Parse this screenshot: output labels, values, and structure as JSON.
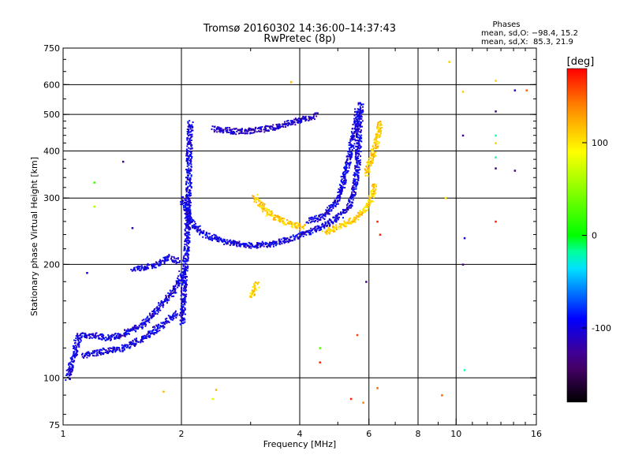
{
  "chart_data": {
    "type": "scatter",
    "title": "Tromsø 20160302 14:36:00–14:37:43",
    "subtitle": "RwPretec (8p)",
    "xlabel": "Frequency [MHz]",
    "ylabel": "Stationary phase Virtual Height [km]",
    "x_scale": "log",
    "y_scale": "log",
    "xlim": [
      1,
      16
    ],
    "ylim": [
      75,
      750
    ],
    "x_ticks": [
      1,
      2,
      4,
      6,
      8,
      10,
      16
    ],
    "x_tick_labels": [
      "1",
      "2",
      "4",
      "6",
      "8",
      "10",
      "16"
    ],
    "x_gridlines": [
      2,
      4,
      6,
      8,
      10
    ],
    "y_ticks": [
      75,
      100,
      200,
      300,
      400,
      500,
      600,
      750
    ],
    "y_tick_labels": [
      "75",
      "100",
      "200",
      "300",
      "400",
      "500",
      "600",
      "750"
    ],
    "y_gridlines": [
      100,
      200,
      300,
      400,
      500,
      600
    ],
    "grid": true,
    "stats": {
      "title": "Phases",
      "line_o": "mean, sd,O: −98.4, 15.2",
      "line_x": "mean, sd,X:  85.3, 21.9"
    },
    "colorbar": {
      "unit": "[deg]",
      "min": -180,
      "max": 180,
      "ticks": [
        100,
        0,
        -100
      ],
      "tick_labels": [
        "100",
        "0",
        "-100"
      ],
      "placement": "right"
    },
    "traces": [
      {
        "phase_deg": -100,
        "points": [
          [
            1.02,
            100
          ],
          [
            1.05,
            110
          ],
          [
            1.08,
            125
          ],
          [
            1.1,
            130
          ],
          [
            1.2,
            130
          ],
          [
            1.3,
            128
          ],
          [
            1.4,
            130
          ],
          [
            1.5,
            135
          ],
          [
            1.6,
            140
          ],
          [
            1.7,
            150
          ],
          [
            1.8,
            160
          ],
          [
            1.9,
            170
          ],
          [
            1.95,
            180
          ],
          [
            2.0,
            190
          ]
        ]
      },
      {
        "phase_deg": -100,
        "points": [
          [
            1.12,
            115
          ],
          [
            1.25,
            118
          ],
          [
            1.4,
            120
          ],
          [
            1.6,
            128
          ],
          [
            1.8,
            140
          ],
          [
            1.95,
            150
          ]
        ]
      },
      {
        "phase_deg": -100,
        "points": [
          [
            1.5,
            195
          ],
          [
            1.7,
            200
          ],
          [
            1.85,
            210
          ],
          [
            1.95,
            205
          ]
        ]
      },
      {
        "phase_deg": -100,
        "points": [
          [
            2.0,
            140
          ],
          [
            2.02,
            170
          ],
          [
            2.04,
            200
          ],
          [
            2.06,
            240
          ],
          [
            2.07,
            280
          ],
          [
            2.08,
            330
          ],
          [
            2.08,
            380
          ],
          [
            2.09,
            420
          ],
          [
            2.1,
            480
          ]
        ]
      },
      {
        "phase_deg": -100,
        "points": [
          [
            2.0,
            300
          ],
          [
            2.1,
            260
          ],
          [
            2.3,
            240
          ],
          [
            2.6,
            230
          ],
          [
            3.0,
            225
          ],
          [
            3.4,
            228
          ],
          [
            3.8,
            235
          ],
          [
            4.2,
            245
          ],
          [
            4.6,
            255
          ],
          [
            5.0,
            268
          ],
          [
            5.3,
            285
          ],
          [
            5.5,
            320
          ],
          [
            5.6,
            380
          ],
          [
            5.65,
            460
          ],
          [
            5.7,
            540
          ]
        ]
      },
      {
        "phase_deg": -100,
        "points": [
          [
            4.2,
            262
          ],
          [
            4.6,
            270
          ],
          [
            5.0,
            300
          ],
          [
            5.2,
            350
          ],
          [
            5.35,
            400
          ],
          [
            5.5,
            460
          ],
          [
            5.6,
            520
          ]
        ]
      },
      {
        "phase_deg": -110,
        "points": [
          [
            2.4,
            460
          ],
          [
            2.8,
            452
          ],
          [
            3.2,
            458
          ],
          [
            3.6,
            470
          ],
          [
            4.0,
            485
          ],
          [
            4.4,
            500
          ]
        ]
      },
      {
        "phase_deg": 110,
        "points": [
          [
            3.05,
            305
          ],
          [
            3.3,
            275
          ],
          [
            3.6,
            262
          ],
          [
            3.9,
            255
          ],
          [
            4.1,
            252
          ]
        ]
      },
      {
        "phase_deg": 110,
        "points": [
          [
            4.6,
            245
          ],
          [
            5.0,
            252
          ],
          [
            5.5,
            265
          ],
          [
            5.9,
            285
          ],
          [
            6.1,
            305
          ],
          [
            6.2,
            330
          ]
        ]
      },
      {
        "phase_deg": 110,
        "points": [
          [
            5.9,
            350
          ],
          [
            6.1,
            390
          ],
          [
            6.3,
            440
          ],
          [
            6.35,
            480
          ]
        ]
      },
      {
        "phase_deg": 110,
        "points": [
          [
            3.0,
            165
          ],
          [
            3.05,
            170
          ],
          [
            3.1,
            180
          ]
        ]
      }
    ],
    "scatter_points": [
      {
        "x": 1.2,
        "y": 330,
        "phase_deg": 20
      },
      {
        "x": 1.2,
        "y": 285,
        "phase_deg": 60
      },
      {
        "x": 1.42,
        "y": 375,
        "phase_deg": -130
      },
      {
        "x": 1.5,
        "y": 250,
        "phase_deg": -110
      },
      {
        "x": 1.15,
        "y": 190,
        "phase_deg": -100
      },
      {
        "x": 1.8,
        "y": 92,
        "phase_deg": 120
      },
      {
        "x": 2.45,
        "y": 93,
        "phase_deg": 120
      },
      {
        "x": 2.4,
        "y": 88,
        "phase_deg": 80
      },
      {
        "x": 3.8,
        "y": 610,
        "phase_deg": 120
      },
      {
        "x": 5.4,
        "y": 88,
        "phase_deg": 170
      },
      {
        "x": 5.8,
        "y": 86,
        "phase_deg": 140
      },
      {
        "x": 6.3,
        "y": 94,
        "phase_deg": 150
      },
      {
        "x": 4.5,
        "y": 110,
        "phase_deg": 170
      },
      {
        "x": 4.5,
        "y": 120,
        "phase_deg": 30
      },
      {
        "x": 5.6,
        "y": 130,
        "phase_deg": 160
      },
      {
        "x": 5.9,
        "y": 180,
        "phase_deg": -130
      },
      {
        "x": 6.3,
        "y": 260,
        "phase_deg": 170
      },
      {
        "x": 6.4,
        "y": 240,
        "phase_deg": 170
      },
      {
        "x": 9.2,
        "y": 90,
        "phase_deg": 150
      },
      {
        "x": 9.4,
        "y": 300,
        "phase_deg": 100
      },
      {
        "x": 9.6,
        "y": 690,
        "phase_deg": 110
      },
      {
        "x": 10.4,
        "y": 575,
        "phase_deg": 110
      },
      {
        "x": 10.4,
        "y": 440,
        "phase_deg": -130
      },
      {
        "x": 10.4,
        "y": 200,
        "phase_deg": -130
      },
      {
        "x": 10.5,
        "y": 105,
        "phase_deg": -20
      },
      {
        "x": 10.5,
        "y": 235,
        "phase_deg": -100
      },
      {
        "x": 12.6,
        "y": 615,
        "phase_deg": 110
      },
      {
        "x": 12.6,
        "y": 510,
        "phase_deg": -130
      },
      {
        "x": 12.6,
        "y": 440,
        "phase_deg": -20
      },
      {
        "x": 12.6,
        "y": 420,
        "phase_deg": 110
      },
      {
        "x": 12.6,
        "y": 385,
        "phase_deg": -20
      },
      {
        "x": 12.6,
        "y": 360,
        "phase_deg": -130
      },
      {
        "x": 12.6,
        "y": 260,
        "phase_deg": 170
      },
      {
        "x": 14.1,
        "y": 580,
        "phase_deg": -110
      },
      {
        "x": 14.1,
        "y": 355,
        "phase_deg": -130
      },
      {
        "x": 15.1,
        "y": 580,
        "phase_deg": 150
      }
    ]
  }
}
